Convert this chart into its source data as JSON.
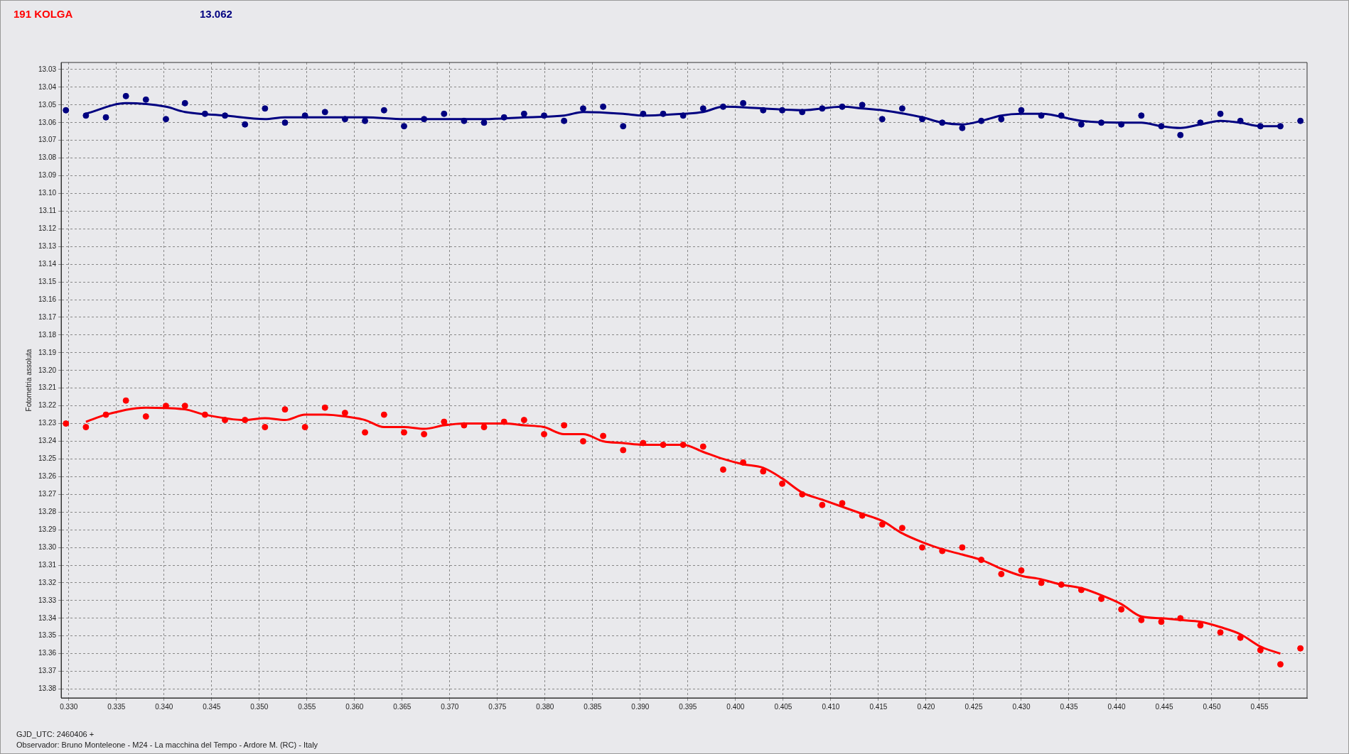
{
  "chart_data": {
    "type": "scatter",
    "title": "191 KOLGA",
    "subtitle": "13.062",
    "ylabel": "Fotometria assoluta",
    "annotations": [
      "GJD_UTC: 2460406 +",
      "Observador: Bruno Monteleone - M24 - La macchina del Tempo - Ardore M. (RC) - Italy"
    ],
    "x": [
      0.3297,
      0.3318,
      0.3339,
      0.336,
      0.3381,
      0.3402,
      0.3422,
      0.3443,
      0.3464,
      0.3485,
      0.3506,
      0.3527,
      0.3548,
      0.3569,
      0.359,
      0.3611,
      0.3631,
      0.3652,
      0.3673,
      0.3694,
      0.3715,
      0.3736,
      0.3757,
      0.3778,
      0.3799,
      0.382,
      0.384,
      0.3861,
      0.3882,
      0.3903,
      0.3924,
      0.3945,
      0.3966,
      0.3987,
      0.4008,
      0.4029,
      0.4049,
      0.407,
      0.4091,
      0.4112,
      0.4133,
      0.4154,
      0.4175,
      0.4196,
      0.4217,
      0.4238,
      0.4258,
      0.4279,
      0.43,
      0.4321,
      0.4342,
      0.4363,
      0.4384,
      0.4405,
      0.4426,
      0.4447,
      0.4467,
      0.4488,
      0.4509,
      0.453,
      0.4551,
      0.4572,
      0.4593
    ],
    "series": [
      {
        "type": "line",
        "marker": "none",
        "color": "#000080",
        "x": [
          0.3318,
          0.336,
          0.3402,
          0.3422,
          0.3464,
          0.3506,
          0.3527,
          0.3569,
          0.3611,
          0.3652,
          0.3694,
          0.3736,
          0.3778,
          0.382,
          0.384,
          0.3882,
          0.3903,
          0.3945,
          0.3966,
          0.3987,
          0.4029,
          0.407,
          0.4112,
          0.4133,
          0.4154,
          0.4196,
          0.4217,
          0.4238,
          0.4258,
          0.4279,
          0.43,
          0.4321,
          0.4363,
          0.4405,
          0.4426,
          0.4447,
          0.4467,
          0.4488,
          0.4509,
          0.453,
          0.4551,
          0.4572
        ],
        "values": [
          13.055,
          13.049,
          13.051,
          13.054,
          13.056,
          13.058,
          13.057,
          13.057,
          13.057,
          13.058,
          13.058,
          13.058,
          13.057,
          13.056,
          13.054,
          13.055,
          13.056,
          13.055,
          13.054,
          13.051,
          13.052,
          13.053,
          13.051,
          13.052,
          13.053,
          13.057,
          13.06,
          13.061,
          13.059,
          13.056,
          13.055,
          13.055,
          13.059,
          13.06,
          13.06,
          13.062,
          13.063,
          13.061,
          13.059,
          13.06,
          13.062,
          13.062
        ]
      },
      {
        "type": "line",
        "marker": "none",
        "color": "#ff0000",
        "x": [
          0.3318,
          0.3339,
          0.3381,
          0.3422,
          0.3443,
          0.3485,
          0.3506,
          0.3527,
          0.3548,
          0.3569,
          0.359,
          0.3611,
          0.3631,
          0.3652,
          0.3673,
          0.3694,
          0.3715,
          0.3736,
          0.3757,
          0.3778,
          0.3799,
          0.382,
          0.384,
          0.3861,
          0.3882,
          0.3903,
          0.3924,
          0.3945,
          0.3966,
          0.3987,
          0.4008,
          0.4029,
          0.4049,
          0.407,
          0.4091,
          0.4112,
          0.4133,
          0.4154,
          0.4175,
          0.4196,
          0.4217,
          0.4238,
          0.4258,
          0.4279,
          0.43,
          0.4321,
          0.4342,
          0.4363,
          0.4384,
          0.4405,
          0.4426,
          0.4447,
          0.4467,
          0.4488,
          0.4509,
          0.453,
          0.4551,
          0.4572
        ],
        "values": [
          13.229,
          13.225,
          13.221,
          13.222,
          13.225,
          13.228,
          13.227,
          13.228,
          13.225,
          13.225,
          13.226,
          13.228,
          13.232,
          13.232,
          13.233,
          13.231,
          13.23,
          13.23,
          13.23,
          13.231,
          13.232,
          13.236,
          13.236,
          13.24,
          13.241,
          13.242,
          13.242,
          13.242,
          13.246,
          13.25,
          13.253,
          13.255,
          13.261,
          13.269,
          13.273,
          13.277,
          13.281,
          13.285,
          13.292,
          13.297,
          13.301,
          13.304,
          13.307,
          13.312,
          13.316,
          13.318,
          13.321,
          13.323,
          13.327,
          13.332,
          13.339,
          13.34,
          13.341,
          13.342,
          13.345,
          13.349,
          13.356,
          13.36
        ]
      },
      {
        "marker": "circle",
        "color": "#000080",
        "values": [
          13.053,
          13.056,
          13.057,
          13.045,
          13.047,
          13.058,
          13.049,
          13.055,
          13.056,
          13.061,
          13.052,
          13.06,
          13.056,
          13.054,
          13.058,
          13.059,
          13.053,
          13.062,
          13.058,
          13.055,
          13.059,
          13.06,
          13.057,
          13.055,
          13.056,
          13.059,
          13.052,
          13.051,
          13.062,
          13.055,
          13.055,
          13.056,
          13.052,
          13.051,
          13.049,
          13.053,
          13.053,
          13.054,
          13.052,
          13.051,
          13.05,
          13.058,
          13.052,
          13.058,
          13.06,
          13.063,
          13.059,
          13.058,
          13.053,
          13.056,
          13.056,
          13.061,
          13.06,
          13.061,
          13.056,
          13.062,
          13.067,
          13.06,
          13.055,
          13.059,
          13.062,
          13.062,
          13.059
        ]
      },
      {
        "marker": "circle",
        "color": "#ff0000",
        "values": [
          13.23,
          13.232,
          13.225,
          13.217,
          13.226,
          13.22,
          13.22,
          13.225,
          13.228,
          13.228,
          13.232,
          13.222,
          13.232,
          13.221,
          13.224,
          13.235,
          13.225,
          13.235,
          13.236,
          13.229,
          13.231,
          13.232,
          13.229,
          13.228,
          13.236,
          13.231,
          13.24,
          13.237,
          13.245,
          13.241,
          13.242,
          13.242,
          13.243,
          13.256,
          13.252,
          13.257,
          13.264,
          13.27,
          13.276,
          13.275,
          13.282,
          13.287,
          13.289,
          13.3,
          13.302,
          13.3,
          13.307,
          13.315,
          13.313,
          13.32,
          13.321,
          13.324,
          13.329,
          13.335,
          13.341,
          13.342,
          13.34,
          13.344,
          13.348,
          13.351,
          13.358,
          13.366,
          13.357
        ]
      }
    ],
    "xlim": [
      0.3292,
      0.46
    ],
    "xticks": [
      {
        "value": 0.33,
        "label": "0.330"
      },
      0.335,
      {
        "value": 0.34,
        "label": "0.340"
      },
      0.345,
      {
        "value": 0.35,
        "label": "0.350"
      },
      0.355,
      {
        "value": 0.36,
        "label": "0.360"
      },
      0.365,
      {
        "value": 0.37,
        "label": "0.370"
      },
      0.375,
      {
        "value": 0.38,
        "label": "0.380"
      },
      0.385,
      {
        "value": 0.39,
        "label": "0.390"
      },
      0.395,
      {
        "value": 0.4,
        "label": "0.400"
      },
      0.405,
      {
        "value": 0.41,
        "label": "0.410"
      },
      0.415,
      {
        "value": 0.42,
        "label": "0.420"
      },
      0.425,
      {
        "value": 0.43,
        "label": "0.430"
      },
      0.435,
      {
        "value": 0.44,
        "label": "0.440"
      },
      0.445,
      {
        "value": 0.45,
        "label": "0.450"
      },
      0.455
    ],
    "ylim": [
      13.385,
      13.026
    ],
    "yticks": [
      13.03,
      13.04,
      13.05,
      13.06,
      13.07,
      13.08,
      13.09,
      {
        "value": 13.1,
        "label": "13.10"
      },
      13.11,
      13.12,
      13.13,
      13.14,
      13.15,
      13.16,
      13.17,
      13.18,
      13.19,
      {
        "value": 13.2,
        "label": "13.20"
      },
      13.21,
      13.22,
      13.23,
      13.24,
      13.25,
      13.26,
      13.27,
      13.28,
      13.29,
      {
        "value": 13.3,
        "label": "13.30"
      },
      13.31,
      13.32,
      13.33,
      13.34,
      13.35,
      13.36,
      13.37,
      13.38
    ],
    "grid": true
  }
}
